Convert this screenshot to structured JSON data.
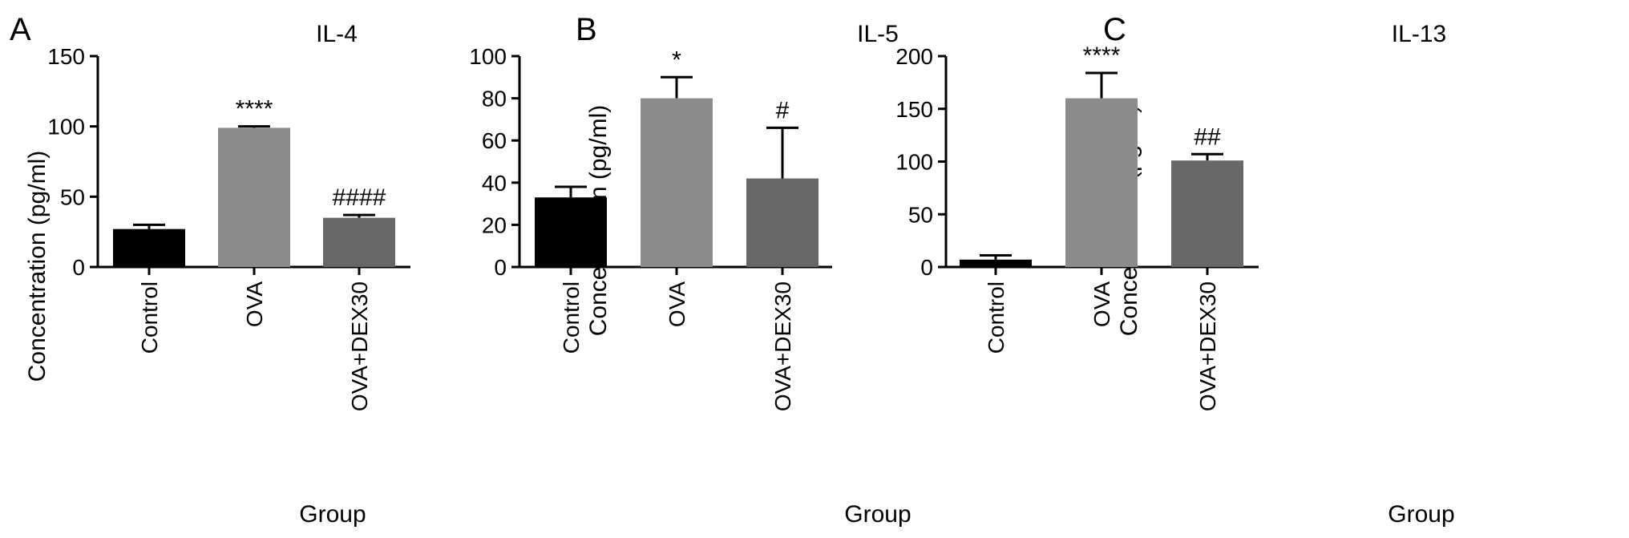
{
  "colors": {
    "Control": "#000000",
    "OVA": "#8c8c8c",
    "OVA+DEX30": "#686868",
    "axis": "#000000"
  },
  "chart_data": [
    {
      "panel": "A",
      "type": "bar",
      "title": "IL-4",
      "xlabel": "Group",
      "ylabel": "Concentration (pg/ml)",
      "ylim": [
        0,
        150
      ],
      "yticks": [
        0,
        50,
        100,
        150
      ],
      "categories": [
        "Control",
        "OVA",
        "OVA+DEX30"
      ],
      "values": [
        27,
        99,
        35
      ],
      "errors": [
        3,
        1,
        2
      ],
      "significance": [
        "",
        "****",
        "####"
      ],
      "grid": false
    },
    {
      "panel": "B",
      "type": "bar",
      "title": "IL-5",
      "xlabel": "Group",
      "ylabel": "Concentration (pg/ml)",
      "ylim": [
        0,
        100
      ],
      "yticks": [
        0,
        20,
        40,
        60,
        80,
        100
      ],
      "categories": [
        "Control",
        "OVA",
        "OVA+DEX30"
      ],
      "values": [
        33,
        80,
        42
      ],
      "errors": [
        5,
        10,
        24
      ],
      "significance": [
        "",
        "*",
        "#"
      ],
      "grid": false
    },
    {
      "panel": "C",
      "type": "bar",
      "title": "IL-13",
      "xlabel": "Group",
      "ylabel": "Concentration (pg/ml)",
      "ylim": [
        0,
        200
      ],
      "yticks": [
        0,
        50,
        100,
        150,
        200
      ],
      "categories": [
        "Control",
        "OVA",
        "OVA+DEX30"
      ],
      "values": [
        7,
        160,
        101
      ],
      "errors": [
        4,
        24,
        6
      ],
      "significance": [
        "",
        "****",
        "##"
      ],
      "grid": false
    }
  ]
}
